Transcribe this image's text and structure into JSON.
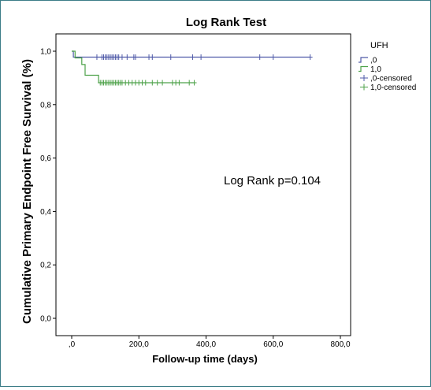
{
  "chart_data": {
    "type": "line",
    "title": "Log Rank Test",
    "xlabel": "Follow-up time (days)",
    "ylabel": "Cumulative Primary Endpoint Free Survival (%)",
    "xlim": [
      0,
      800
    ],
    "ylim": [
      0,
      1.0
    ],
    "x_ticks": [
      0,
      200,
      400,
      600,
      800
    ],
    "x_tick_labels": [
      ",0",
      "200,0",
      "400,0",
      "600,0",
      "800,0"
    ],
    "y_ticks": [
      0,
      0.2,
      0.4,
      0.6,
      0.8,
      1.0
    ],
    "y_tick_labels": [
      "0,0",
      "0,2",
      "0,4",
      "0,6",
      "0,8",
      "1,0"
    ],
    "legend_title": "UFH",
    "legend_position": "right",
    "annotation": "Log Rank p=0.104",
    "grid": false,
    "series": [
      {
        "name": ",0",
        "color": "#4f5aa8",
        "steps": [
          [
            0,
            1.0
          ],
          [
            5,
            1.0
          ],
          [
            5,
            0.978
          ],
          [
            710,
            0.978
          ]
        ],
        "censored_name": ",0-censored",
        "censored_x": [
          75,
          90,
          95,
          100,
          105,
          110,
          115,
          120,
          125,
          130,
          135,
          140,
          150,
          165,
          185,
          190,
          230,
          240,
          295,
          360,
          385,
          560,
          600,
          710
        ],
        "censored_y": 0.978
      },
      {
        "name": "1,0",
        "color": "#4ea24a",
        "steps": [
          [
            0,
            1.0
          ],
          [
            10,
            1.0
          ],
          [
            10,
            0.975
          ],
          [
            30,
            0.975
          ],
          [
            30,
            0.95
          ],
          [
            40,
            0.95
          ],
          [
            40,
            0.91
          ],
          [
            80,
            0.91
          ],
          [
            80,
            0.882
          ],
          [
            365,
            0.882
          ]
        ],
        "censored_name": "1,0-censored",
        "censored_x": [
          85,
          90,
          95,
          100,
          105,
          110,
          115,
          120,
          125,
          130,
          135,
          140,
          145,
          150,
          160,
          170,
          180,
          190,
          200,
          210,
          220,
          240,
          255,
          270,
          300,
          310,
          320,
          350,
          365
        ],
        "censored_y": 0.882
      }
    ]
  }
}
